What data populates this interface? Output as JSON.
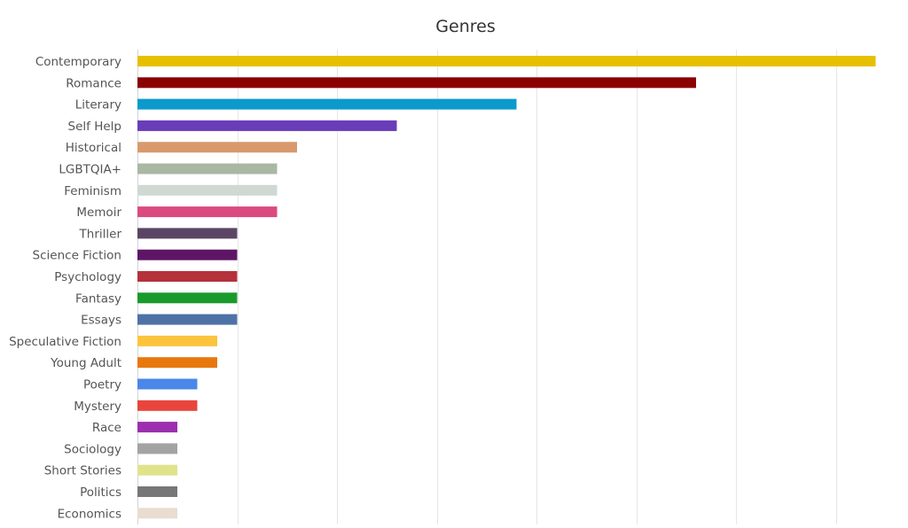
{
  "chart_data": {
    "type": "bar",
    "orientation": "horizontal",
    "title": "Genres",
    "xlabel": "",
    "ylabel": "",
    "grid": true,
    "legend": "none",
    "categories": [
      "Contemporary",
      "Romance",
      "Literary",
      "Self Help",
      "Historical",
      "LGBTQIA+",
      "Feminism",
      "Memoir",
      "Thriller",
      "Science Fiction",
      "Psychology",
      "Fantasy",
      "Essays",
      "Speculative Fiction",
      "Young Adult",
      "Poetry",
      "Mystery",
      "Race",
      "Sociology",
      "Short Stories",
      "Politics",
      "Economics"
    ],
    "values": [
      37,
      28,
      19,
      13,
      8,
      7,
      7,
      7,
      5,
      5,
      5,
      5,
      5,
      4,
      4,
      3,
      3,
      2,
      2,
      2,
      2,
      2
    ],
    "colors": [
      "#e6c000",
      "#8b0000",
      "#0b9acb",
      "#6a3db8",
      "#d89a6c",
      "#a8b8a3",
      "#cfd8d3",
      "#db4a7f",
      "#5a4664",
      "#5f1566",
      "#b5313c",
      "#1a9a2b",
      "#4e72a6",
      "#fbc43c",
      "#e8770e",
      "#4b87e8",
      "#e8453c",
      "#9b2fae",
      "#a3a3a3",
      "#dfe38a",
      "#777777",
      "#e9dcd0"
    ],
    "xlim": [
      0,
      38
    ],
    "x_grid_step": 5
  }
}
